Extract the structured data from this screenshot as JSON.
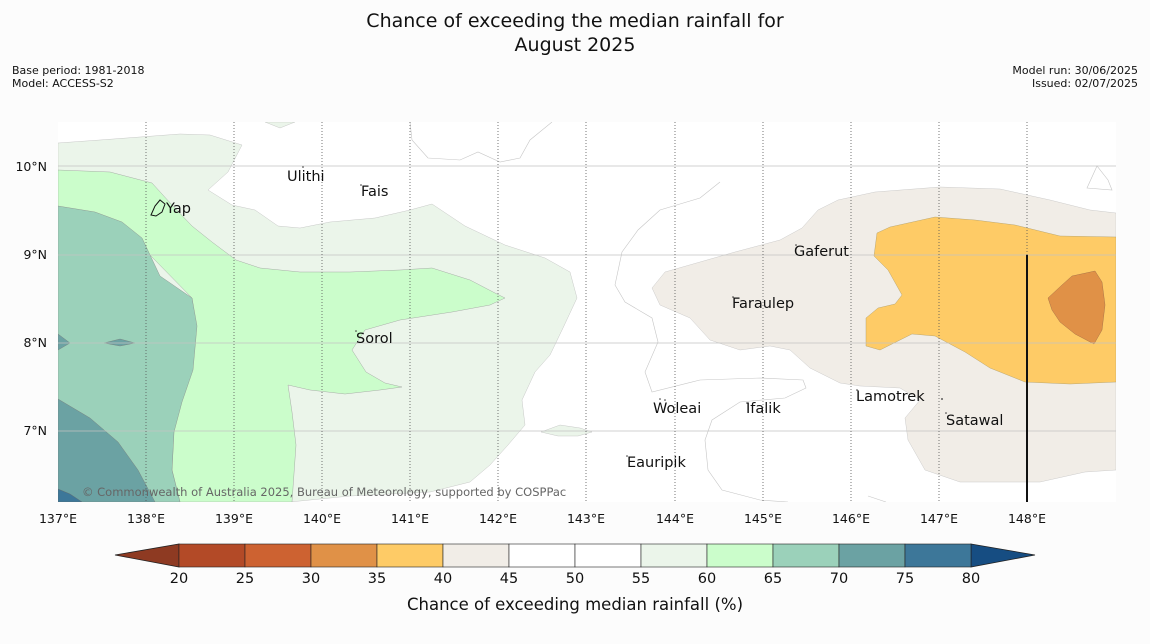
{
  "title_line1": "Chance of exceeding the median rainfall for",
  "title_line2": "August 2025",
  "meta_left": [
    "Base period: 1981-2018",
    "Model: ACCESS-S2"
  ],
  "meta_right": [
    "Model run: 30/06/2025",
    "Issued: 02/07/2025"
  ],
  "map": {
    "lon_range": [
      137,
      149
    ],
    "lat_range": [
      6.2,
      10.5
    ],
    "lon_ticks": [
      "137°E",
      "138°E",
      "139°E",
      "140°E",
      "141°E",
      "142°E",
      "143°E",
      "144°E",
      "145°E",
      "146°E",
      "147°E",
      "148°E"
    ],
    "lat_ticks": [
      "10°N",
      "9°N",
      "8°N",
      "7°N"
    ],
    "places": [
      "Yap",
      "Ulithi",
      "Fais",
      "Gaferut",
      "Faraulep",
      "Sorol",
      "Lamotrek",
      "Woleai",
      "Ifalik",
      "Satawal",
      "Eauripik"
    ],
    "copyright": "© Commonwealth of Australia 2025, Bureau of Meteorology, supported by COSPPac"
  },
  "colorbar": {
    "title": "Chance of exceeding median rainfall (%)",
    "ticks": [
      "20",
      "25",
      "30",
      "35",
      "40",
      "45",
      "50",
      "55",
      "60",
      "65",
      "70",
      "75",
      "80"
    ],
    "colors": {
      "below20": "#8e3a22",
      "c20_25": "#b34a27",
      "c25_30": "#cd6231",
      "c30_35": "#e09147",
      "c35_40": "#fecb66",
      "c40_45": "#f1ede7",
      "c45_50": "#ffffff",
      "c50_55": "#ffffff",
      "c55_60": "#ebf5ea",
      "c60_65": "#cbfdcb",
      "c65_70": "#9bd1ba",
      "c70_75": "#6ba2a3",
      "c75_80": "#3d7799",
      "above80": "#164d82"
    }
  }
}
